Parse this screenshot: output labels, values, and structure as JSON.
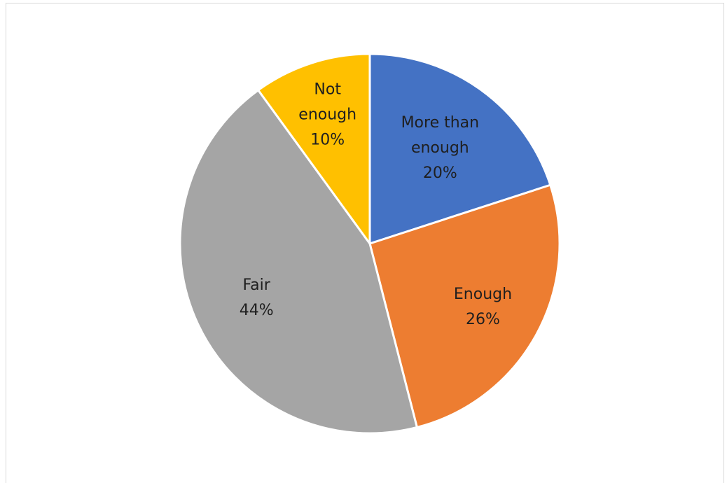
{
  "chart_data": {
    "type": "pie",
    "title": "",
    "start_angle_deg": 0,
    "direction": "clockwise",
    "slice_border_color": "#ffffff",
    "slices": [
      {
        "name": "More than enough",
        "label_lines": [
          "More than",
          "enough"
        ],
        "value": 20,
        "percent_label": "20%",
        "color": "#4472C4"
      },
      {
        "name": "Enough",
        "label_lines": [
          "Enough"
        ],
        "value": 26,
        "percent_label": "26%",
        "color": "#ED7D31"
      },
      {
        "name": "Fair",
        "label_lines": [
          "Fair"
        ],
        "value": 44,
        "percent_label": "44%",
        "color": "#A5A5A5"
      },
      {
        "name": "Not enough",
        "label_lines": [
          "Not",
          "enough"
        ],
        "value": 10,
        "percent_label": "10%",
        "color": "#FFC000"
      }
    ],
    "legend": "none",
    "data_labels": "inside"
  }
}
